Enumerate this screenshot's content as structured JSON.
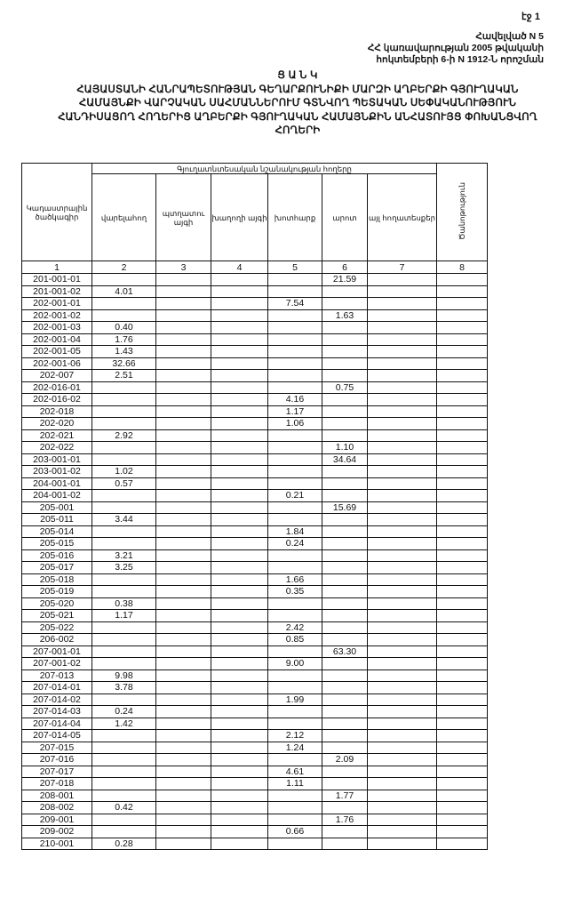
{
  "page_number": "էջ 1",
  "annex": {
    "line1": "Հավելված N 5",
    "line2": "ՀՀ կառավարության 2005 թվականի",
    "line3": "հոկտեմբերի 6-ի N 1912-Ն որոշման"
  },
  "title": {
    "heading": "Ց Ա Ն Կ",
    "line1": "ՀԱՅԱՍՏԱՆԻ ՀԱՆՐԱՊԵՏՈՒԹՅԱՆ ԳԵՂԱՐՔՈՒՆԻՔԻ ՄԱՐԶԻ ԱՂԲԵՐՔԻ ԳՅՈՒՂԱԿԱՆ",
    "line2": "ՀԱՄԱՅՆՔԻ ՎԱՐՉԱԿԱՆ ՍԱՀՄԱՆՆԵՐՈՒՄ ԳՏՆՎՈՂ ՊԵՏԱԿԱՆ ՍԵՓԱԿԱՆՈՒԹՅՈՒՆ",
    "line3": "ՀԱՆԴԻՍԱՑՈՂ ՀՈՂԵՐԻՑ ԱՂԲԵՐՔԻ ԳՅՈՒՂԱԿԱՆ ՀԱՄԱՅՆՔԻՆ ԱՆՀԱՏՈՒՅՑ ՓՈԽԱՆՑՎՈՂ",
    "line4": "ՀՈՂԵՐԻ"
  },
  "table": {
    "col_code": "Կադաստրային ծածկագիր",
    "group_header": "Գյուղատնտեսական նշանակության հողերը",
    "cols": [
      "վարելահող",
      "պտղատու այգի",
      "խաղողի այգի",
      "խոտհարք",
      "արոտ",
      "այլ հողատեսքեր"
    ],
    "col_note": "Ծանոթություն",
    "numbers": [
      "1",
      "2",
      "3",
      "4",
      "5",
      "6",
      "7",
      "8"
    ],
    "rows": [
      [
        "201-001-01",
        "",
        "",
        "",
        "",
        "21.59",
        "",
        ""
      ],
      [
        "201-001-02",
        "4.01",
        "",
        "",
        "",
        "",
        "",
        ""
      ],
      [
        "202-001-01",
        "",
        "",
        "",
        "7.54",
        "",
        "",
        ""
      ],
      [
        "202-001-02",
        "",
        "",
        "",
        "",
        "1.63",
        "",
        ""
      ],
      [
        "202-001-03",
        "0.40",
        "",
        "",
        "",
        "",
        "",
        ""
      ],
      [
        "202-001-04",
        "1.76",
        "",
        "",
        "",
        "",
        "",
        ""
      ],
      [
        "202-001-05",
        "1.43",
        "",
        "",
        "",
        "",
        "",
        ""
      ],
      [
        "202-001-06",
        "32.66",
        "",
        "",
        "",
        "",
        "",
        ""
      ],
      [
        "202-007",
        "2.51",
        "",
        "",
        "",
        "",
        "",
        ""
      ],
      [
        "202-016-01",
        "",
        "",
        "",
        "",
        "0.75",
        "",
        ""
      ],
      [
        "202-016-02",
        "",
        "",
        "",
        "4.16",
        "",
        "",
        ""
      ],
      [
        "202-018",
        "",
        "",
        "",
        "1.17",
        "",
        "",
        ""
      ],
      [
        "202-020",
        "",
        "",
        "",
        "1.06",
        "",
        "",
        ""
      ],
      [
        "202-021",
        "2.92",
        "",
        "",
        "",
        "",
        "",
        ""
      ],
      [
        "202-022",
        "",
        "",
        "",
        "",
        "1.10",
        "",
        ""
      ],
      [
        "203-001-01",
        "",
        "",
        "",
        "",
        "34.64",
        "",
        ""
      ],
      [
        "203-001-02",
        "1.02",
        "",
        "",
        "",
        "",
        "",
        ""
      ],
      [
        "204-001-01",
        "0.57",
        "",
        "",
        "",
        "",
        "",
        ""
      ],
      [
        "204-001-02",
        "",
        "",
        "",
        "0.21",
        "",
        "",
        ""
      ],
      [
        "205-001",
        "",
        "",
        "",
        "",
        "15.69",
        "",
        ""
      ],
      [
        "205-011",
        "3.44",
        "",
        "",
        "",
        "",
        "",
        ""
      ],
      [
        "205-014",
        "",
        "",
        "",
        "1.84",
        "",
        "",
        ""
      ],
      [
        "205-015",
        "",
        "",
        "",
        "0.24",
        "",
        "",
        ""
      ],
      [
        "205-016",
        "3.21",
        "",
        "",
        "",
        "",
        "",
        ""
      ],
      [
        "205-017",
        "3.25",
        "",
        "",
        "",
        "",
        "",
        ""
      ],
      [
        "205-018",
        "",
        "",
        "",
        "1.66",
        "",
        "",
        ""
      ],
      [
        "205-019",
        "",
        "",
        "",
        "0.35",
        "",
        "",
        ""
      ],
      [
        "205-020",
        "0.38",
        "",
        "",
        "",
        "",
        "",
        ""
      ],
      [
        "205-021",
        "1.17",
        "",
        "",
        "",
        "",
        "",
        ""
      ],
      [
        "205-022",
        "",
        "",
        "",
        "2.42",
        "",
        "",
        ""
      ],
      [
        "206-002",
        "",
        "",
        "",
        "0.85",
        "",
        "",
        ""
      ],
      [
        "207-001-01",
        "",
        "",
        "",
        "",
        "63.30",
        "",
        ""
      ],
      [
        "207-001-02",
        "",
        "",
        "",
        "9.00",
        "",
        "",
        ""
      ],
      [
        "207-013",
        "9.98",
        "",
        "",
        "",
        "",
        "",
        ""
      ],
      [
        "207-014-01",
        "3.78",
        "",
        "",
        "",
        "",
        "",
        ""
      ],
      [
        "207-014-02",
        "",
        "",
        "",
        "1.99",
        "",
        "",
        ""
      ],
      [
        "207-014-03",
        "0.24",
        "",
        "",
        "",
        "",
        "",
        ""
      ],
      [
        "207-014-04",
        "1.42",
        "",
        "",
        "",
        "",
        "",
        ""
      ],
      [
        "207-014-05",
        "",
        "",
        "",
        "2.12",
        "",
        "",
        ""
      ],
      [
        "207-015",
        "",
        "",
        "",
        "1.24",
        "",
        "",
        ""
      ],
      [
        "207-016",
        "",
        "",
        "",
        "",
        "2.09",
        "",
        ""
      ],
      [
        "207-017",
        "",
        "",
        "",
        "4.61",
        "",
        "",
        ""
      ],
      [
        "207-018",
        "",
        "",
        "",
        "1.11",
        "",
        "",
        ""
      ],
      [
        "208-001",
        "",
        "",
        "",
        "",
        "1.77",
        "",
        ""
      ],
      [
        "208-002",
        "0.42",
        "",
        "",
        "",
        "",
        "",
        ""
      ],
      [
        "209-001",
        "",
        "",
        "",
        "",
        "1.76",
        "",
        ""
      ],
      [
        "209-002",
        "",
        "",
        "",
        "0.66",
        "",
        "",
        ""
      ],
      [
        "210-001",
        "0.28",
        "",
        "",
        "",
        "",
        "",
        ""
      ]
    ]
  }
}
